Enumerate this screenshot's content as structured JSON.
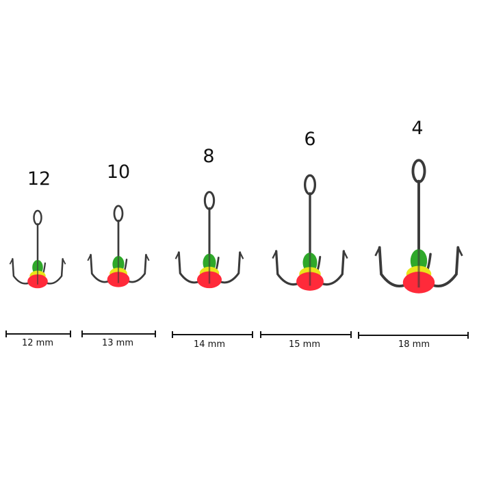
{
  "hooks": [
    {
      "size": "12",
      "length": "12 mm"
    },
    {
      "size": "10",
      "length": "13 mm"
    },
    {
      "size": "8",
      "length": "14 mm"
    },
    {
      "size": "6",
      "length": "15 mm"
    },
    {
      "size": "4",
      "length": "18 mm"
    }
  ],
  "colors": {
    "metal": "#3a3a3a",
    "bead_red": "#ff2a3a",
    "bead_yellow": "#e9e51a",
    "bead_green": "#2fa82a",
    "scale_line": "#111111"
  }
}
